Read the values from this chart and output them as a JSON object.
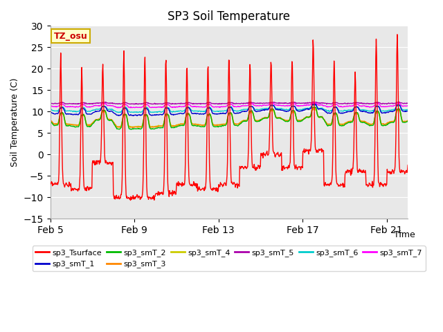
{
  "title": "SP3 Soil Temperature",
  "xlabel": "Time",
  "ylabel": "Soil Temperature (C)",
  "ylim": [
    -15,
    30
  ],
  "xlim": [
    0,
    17
  ],
  "x_ticks": [
    0,
    4,
    8,
    12,
    16
  ],
  "x_tick_labels": [
    "Feb 5",
    "Feb 9",
    "Feb 13",
    "Feb 17",
    "Feb 21"
  ],
  "y_ticks": [
    -15,
    -10,
    -5,
    0,
    5,
    10,
    15,
    20,
    25,
    30
  ],
  "fig_facecolor": "#ffffff",
  "plot_bg_color": "#e8e8e8",
  "annotation_text": "TZ_osu",
  "annotation_bg": "#ffffcc",
  "annotation_border": "#ccaa00",
  "series_colors": {
    "sp3_Tsurface": "#ff0000",
    "sp3_smT_1": "#0000cc",
    "sp3_smT_2": "#00bb00",
    "sp3_smT_3": "#ff8800",
    "sp3_smT_4": "#cccc00",
    "sp3_smT_5": "#aa00aa",
    "sp3_smT_6": "#00cccc",
    "sp3_smT_7": "#ff00ff"
  },
  "legend_entries": [
    "sp3_Tsurface",
    "sp3_smT_1",
    "sp3_smT_2",
    "sp3_smT_3",
    "sp3_smT_4",
    "sp3_smT_5",
    "sp3_smT_6",
    "sp3_smT_7"
  ]
}
